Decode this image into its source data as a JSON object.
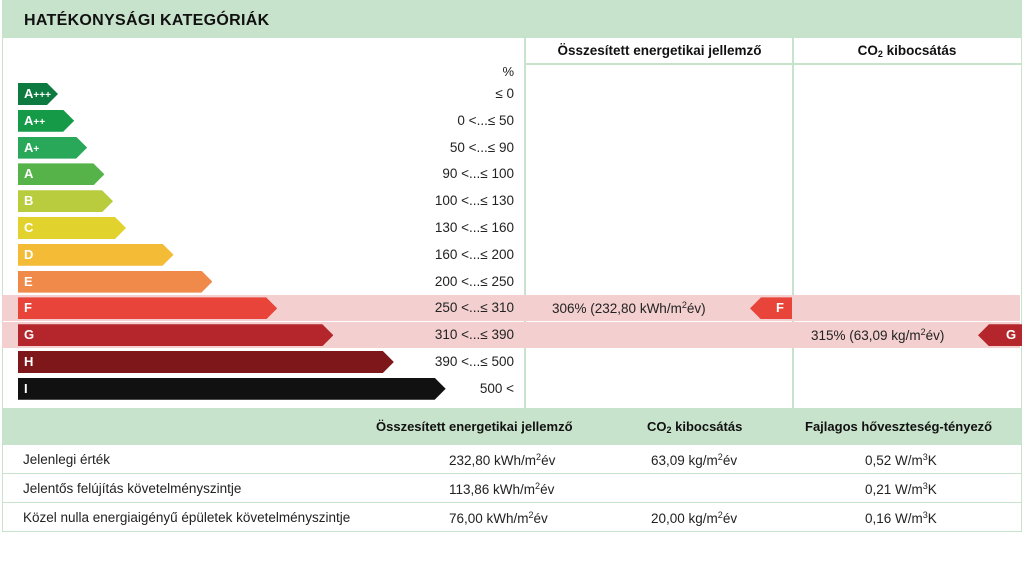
{
  "title": "HATÉKONYSÁGI KATEGÓRIÁK",
  "header": {
    "energy": "Összesített energetikai jellemző",
    "co2_prefix": "CO",
    "co2_sub": "2",
    "co2_suffix": " kibocsátás",
    "percent": "%"
  },
  "categories": [
    {
      "label": "A",
      "plus": "+++",
      "range": "≤ 0",
      "color": "#0d7a3f",
      "fraction": 0.08
    },
    {
      "label": "A",
      "plus": "++",
      "range": "0 <...≤ 50",
      "color": "#159a48",
      "fraction": 0.13
    },
    {
      "label": "A",
      "plus": "+",
      "range": "50 <...≤ 90",
      "color": "#2aa85a",
      "fraction": 0.16
    },
    {
      "label": "A",
      "plus": "",
      "range": "90 <...≤ 100",
      "color": "#55b34a",
      "fraction": 0.2
    },
    {
      "label": "B",
      "plus": "",
      "range": "100 <...≤ 130",
      "color": "#b8cc3e",
      "fraction": 0.22
    },
    {
      "label": "C",
      "plus": "",
      "range": "130 <...≤ 160",
      "color": "#e2d22e",
      "fraction": 0.25
    },
    {
      "label": "D",
      "plus": "",
      "range": "160 <...≤ 200",
      "color": "#f4bb36",
      "fraction": 0.36
    },
    {
      "label": "E",
      "plus": "",
      "range": "200 <...≤ 250",
      "color": "#ef8a4a",
      "fraction": 0.45
    },
    {
      "label": "F",
      "plus": "",
      "range": "250 <...≤ 310",
      "color": "#e8443a",
      "fraction": 0.6
    },
    {
      "label": "G",
      "plus": "",
      "range": "310 <...≤ 390",
      "color": "#b4262c",
      "fraction": 0.73
    },
    {
      "label": "H",
      "plus": "",
      "range": "390 <...≤ 500",
      "color": "#7d1719",
      "fraction": 0.87
    },
    {
      "label": "I",
      "plus": "",
      "range": "500 <",
      "color": "#111111",
      "fraction": 0.99
    }
  ],
  "results": {
    "energy": {
      "text_pre": "306% (232,80 kWh/m",
      "text_sup": "2",
      "text_post": "év)",
      "class": "F",
      "color": "#e8443a"
    },
    "co2": {
      "text_pre": "315% (63,09 kg/m",
      "text_sup": "2",
      "text_post": "év)",
      "class": "G",
      "color": "#b4262c"
    }
  },
  "bottom_table": {
    "headers": {
      "energy": "Összesített energetikai jellemző",
      "co2_prefix": "CO",
      "co2_sub": "2",
      "co2_suffix": " kibocsátás",
      "heat": "Fajlagos hőveszteség-tényező"
    },
    "rows": [
      {
        "label": "Jelenlegi érték",
        "energy": "232,80 kWh/m",
        "energy_unit": "év",
        "co2": "63,09 kg/m",
        "co2_unit": "év",
        "heat": "0,52 W/m",
        "heat_unit": "K"
      },
      {
        "label": "Jelentős felújítás követelményszintje",
        "energy": "113,86 kWh/m",
        "energy_unit": "év",
        "co2": "",
        "co2_unit": "",
        "heat": "0,21 W/m",
        "heat_unit": "K"
      },
      {
        "label": "Közel nulla energiaigényű épületek követelményszintje",
        "energy": "76,00 kWh/m",
        "energy_unit": "év",
        "co2": "20,00 kg/m",
        "co2_unit": "év",
        "heat": "0,16 W/m",
        "heat_unit": "K"
      }
    ],
    "sup2": "2",
    "sup3": "3"
  },
  "accent_color": "#c8e3cb",
  "highlight_color": "#f3cfcf"
}
